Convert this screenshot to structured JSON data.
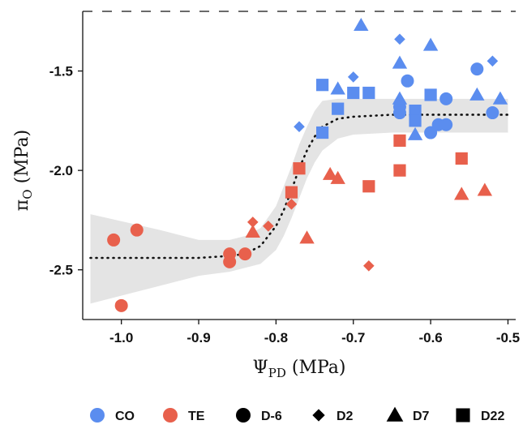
{
  "chart_data": {
    "type": "scatter",
    "title": "",
    "xlabel": {
      "main": "Ψ",
      "sub": "PD",
      "unit": " (MPa)"
    },
    "ylabel": {
      "main": "π",
      "sub": "O",
      "unit": " (MPa)"
    },
    "xlim": [
      -1.05,
      -0.49
    ],
    "ylim": [
      -2.75,
      -1.2
    ],
    "xticks": [
      -1.0,
      -0.9,
      -0.8,
      -0.7,
      -0.6,
      -0.5
    ],
    "xtick_labels": [
      "-1.0",
      "-0.9",
      "-0.8",
      "-0.7",
      "-0.6",
      "-0.5"
    ],
    "yticks": [
      -2.5,
      -2.0,
      -1.5
    ],
    "ytick_labels": [
      "-2.5",
      "-2.0",
      "-1.5"
    ],
    "grid": false,
    "legend_position": "bottom",
    "colors": {
      "CO": "#5b8def",
      "TE": "#e8604c",
      "band": "#e4e4e4",
      "axis": "#111111"
    },
    "legend": {
      "color_groups": [
        {
          "key": "CO",
          "label": "CO"
        },
        {
          "key": "TE",
          "label": "TE"
        }
      ],
      "shape_groups": [
        {
          "shape": "circle",
          "label": "D-6"
        },
        {
          "shape": "diamond",
          "label": "D2"
        },
        {
          "shape": "triangle",
          "label": "D7"
        },
        {
          "shape": "square",
          "label": "D22"
        }
      ]
    },
    "fit_line": {
      "style": "dotted",
      "x": [
        -1.04,
        -0.95,
        -0.9,
        -0.86,
        -0.84,
        -0.82,
        -0.8,
        -0.79,
        -0.78,
        -0.77,
        -0.76,
        -0.75,
        -0.74,
        -0.72,
        -0.7,
        -0.65,
        -0.6,
        -0.55,
        -0.5
      ],
      "y": [
        -2.44,
        -2.44,
        -2.44,
        -2.43,
        -2.42,
        -2.38,
        -2.28,
        -2.2,
        -2.1,
        -1.99,
        -1.9,
        -1.83,
        -1.78,
        -1.74,
        -1.73,
        -1.72,
        -1.72,
        -1.72,
        -1.72
      ]
    },
    "confidence_band": {
      "x": [
        -1.04,
        -0.95,
        -0.9,
        -0.86,
        -0.84,
        -0.82,
        -0.8,
        -0.79,
        -0.78,
        -0.77,
        -0.76,
        -0.75,
        -0.74,
        -0.72,
        -0.7,
        -0.65,
        -0.6,
        -0.55,
        -0.5
      ],
      "upper": [
        -2.22,
        -2.3,
        -2.35,
        -2.35,
        -2.33,
        -2.29,
        -2.18,
        -2.08,
        -1.98,
        -1.87,
        -1.78,
        -1.7,
        -1.65,
        -1.64,
        -1.64,
        -1.64,
        -1.64,
        -1.64,
        -1.64
      ],
      "lower": [
        -2.67,
        -2.58,
        -2.53,
        -2.51,
        -2.49,
        -2.47,
        -2.4,
        -2.33,
        -2.24,
        -2.14,
        -2.04,
        -1.96,
        -1.9,
        -1.84,
        -1.82,
        -1.81,
        -1.81,
        -1.81,
        -1.81
      ]
    },
    "series": [
      {
        "group": "TE",
        "shape": "circle",
        "points": [
          [
            -1.01,
            -2.35
          ],
          [
            -1.0,
            -2.68
          ],
          [
            -0.98,
            -2.3
          ],
          [
            -0.86,
            -2.42
          ],
          [
            -0.86,
            -2.46
          ],
          [
            -0.84,
            -2.42
          ]
        ]
      },
      {
        "group": "TE",
        "shape": "diamond",
        "points": [
          [
            -0.83,
            -2.26
          ],
          [
            -0.81,
            -2.28
          ],
          [
            -0.78,
            -2.17
          ],
          [
            -0.68,
            -2.48
          ]
        ]
      },
      {
        "group": "TE",
        "shape": "triangle",
        "points": [
          [
            -0.83,
            -2.31
          ],
          [
            -0.76,
            -2.34
          ],
          [
            -0.73,
            -2.02
          ],
          [
            -0.72,
            -2.04
          ],
          [
            -0.56,
            -2.12
          ],
          [
            -0.53,
            -2.1
          ]
        ]
      },
      {
        "group": "TE",
        "shape": "square",
        "points": [
          [
            -0.78,
            -2.11
          ],
          [
            -0.77,
            -1.99
          ],
          [
            -0.68,
            -2.08
          ],
          [
            -0.64,
            -1.85
          ],
          [
            -0.64,
            -2.0
          ],
          [
            -0.56,
            -1.94
          ]
        ]
      },
      {
        "group": "CO",
        "shape": "circle",
        "points": [
          [
            -0.64,
            -1.68
          ],
          [
            -0.64,
            -1.71
          ],
          [
            -0.63,
            -1.55
          ],
          [
            -0.6,
            -1.81
          ],
          [
            -0.59,
            -1.77
          ],
          [
            -0.58,
            -1.64
          ],
          [
            -0.58,
            -1.77
          ],
          [
            -0.54,
            -1.49
          ],
          [
            -0.52,
            -1.71
          ]
        ]
      },
      {
        "group": "CO",
        "shape": "diamond",
        "points": [
          [
            -0.77,
            -1.78
          ],
          [
            -0.7,
            -1.53
          ],
          [
            -0.64,
            -1.34
          ],
          [
            -0.52,
            -1.45
          ]
        ]
      },
      {
        "group": "CO",
        "shape": "triangle",
        "points": [
          [
            -0.72,
            -1.59
          ],
          [
            -0.69,
            -1.27
          ],
          [
            -0.64,
            -1.46
          ],
          [
            -0.64,
            -1.64
          ],
          [
            -0.62,
            -1.82
          ],
          [
            -0.6,
            -1.37
          ],
          [
            -0.54,
            -1.62
          ],
          [
            -0.51,
            -1.64
          ]
        ]
      },
      {
        "group": "CO",
        "shape": "square",
        "points": [
          [
            -0.74,
            -1.57
          ],
          [
            -0.74,
            -1.81
          ],
          [
            -0.72,
            -1.69
          ],
          [
            -0.7,
            -1.61
          ],
          [
            -0.68,
            -1.61
          ],
          [
            -0.62,
            -1.7
          ],
          [
            -0.62,
            -1.75
          ],
          [
            -0.6,
            -1.62
          ]
        ]
      }
    ]
  }
}
